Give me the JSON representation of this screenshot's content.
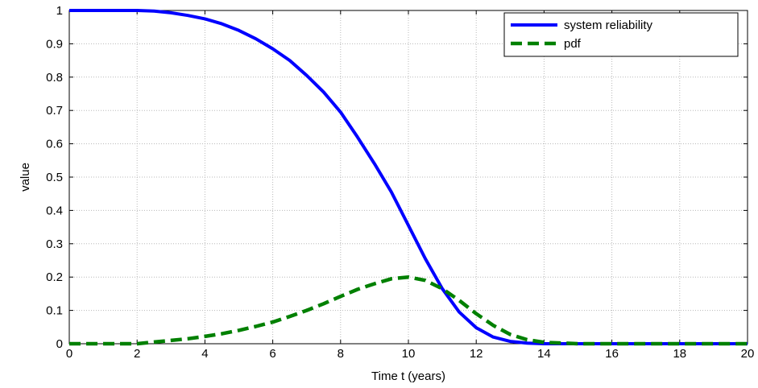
{
  "chart_data": {
    "type": "line",
    "title": "",
    "xlabel": "Time t (years)",
    "ylabel": "value",
    "xlim": [
      0,
      20
    ],
    "ylim": [
      0,
      1
    ],
    "xticks": [
      0,
      2,
      4,
      6,
      8,
      10,
      12,
      14,
      16,
      18,
      20
    ],
    "yticks": [
      0,
      0.1,
      0.2,
      0.3,
      0.4,
      0.5,
      0.6,
      0.7,
      0.8,
      0.9,
      1
    ],
    "grid": true,
    "legend_position": "top-right",
    "x": [
      0,
      1,
      2,
      2.5,
      3,
      3.5,
      4,
      4.5,
      5,
      5.5,
      6,
      6.5,
      7,
      7.5,
      8,
      8.5,
      9,
      9.5,
      10,
      10.5,
      11,
      11.5,
      12,
      12.5,
      13,
      13.5,
      14,
      15,
      16,
      17,
      18,
      19,
      20
    ],
    "series": [
      {
        "name": "system reliability",
        "color": "#0000ff",
        "style": "solid",
        "values": [
          1,
          1,
          1,
          0.998,
          0.993,
          0.985,
          0.975,
          0.96,
          0.94,
          0.915,
          0.885,
          0.85,
          0.805,
          0.755,
          0.695,
          0.62,
          0.54,
          0.455,
          0.355,
          0.255,
          0.165,
          0.095,
          0.048,
          0.02,
          0.007,
          0.002,
          0,
          0,
          0,
          0,
          0,
          0,
          0
        ]
      },
      {
        "name": "pdf",
        "color": "#008000",
        "style": "dashed",
        "values": [
          0,
          0,
          0,
          0.005,
          0.01,
          0.015,
          0.022,
          0.03,
          0.04,
          0.052,
          0.065,
          0.082,
          0.1,
          0.12,
          0.142,
          0.163,
          0.18,
          0.195,
          0.2,
          0.19,
          0.165,
          0.13,
          0.09,
          0.055,
          0.028,
          0.012,
          0.004,
          0,
          0,
          0,
          0,
          0,
          0
        ]
      }
    ]
  }
}
